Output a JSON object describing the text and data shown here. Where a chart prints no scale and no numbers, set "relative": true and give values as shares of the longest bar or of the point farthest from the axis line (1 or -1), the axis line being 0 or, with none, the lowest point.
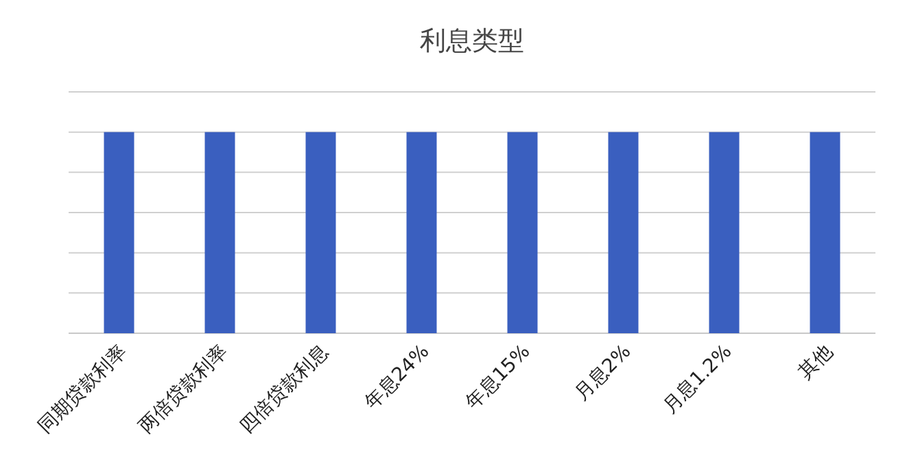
{
  "chart_data": {
    "type": "bar",
    "title": "利息类型",
    "categories": [
      "同期贷款利率",
      "两倍贷款利率",
      "四倍贷款利息",
      "年息24%",
      "年息15%",
      "月息2%",
      "月息1.2%",
      "其他"
    ],
    "values": [
      1,
      1,
      1,
      1,
      1,
      1,
      1,
      1
    ],
    "color": "#3a5fbf",
    "relative": true,
    "grid": "y"
  }
}
